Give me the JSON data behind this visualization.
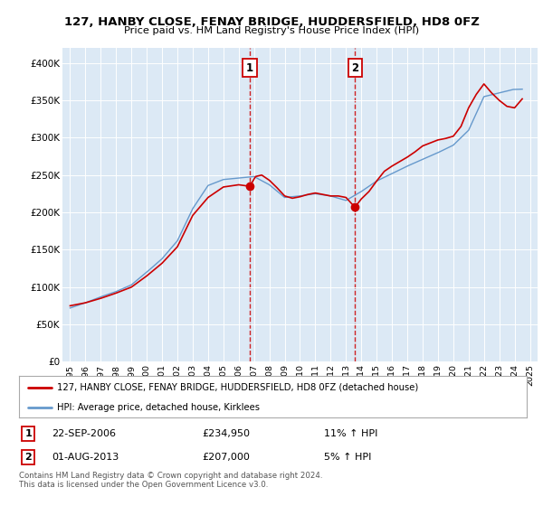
{
  "title1": "127, HANBY CLOSE, FENAY BRIDGE, HUDDERSFIELD, HD8 0FZ",
  "title2": "Price paid vs. HM Land Registry's House Price Index (HPI)",
  "legend_line1": "127, HANBY CLOSE, FENAY BRIDGE, HUDDERSFIELD, HD8 0FZ (detached house)",
  "legend_line2": "HPI: Average price, detached house, Kirklees",
  "annotation1_label": "1",
  "annotation1_date": "22-SEP-2006",
  "annotation1_price": "£234,950",
  "annotation1_hpi": "11% ↑ HPI",
  "annotation2_label": "2",
  "annotation2_date": "01-AUG-2013",
  "annotation2_price": "£207,000",
  "annotation2_hpi": "5% ↑ HPI",
  "footnote": "Contains HM Land Registry data © Crown copyright and database right 2024.\nThis data is licensed under the Open Government Licence v3.0.",
  "background_color": "#dce9f5",
  "line_color_red": "#cc0000",
  "line_color_blue": "#6699cc",
  "marker1_x": 2006.72,
  "marker1_y": 234950,
  "marker2_x": 2013.58,
  "marker2_y": 207000,
  "ylim_min": 0,
  "ylim_max": 420000,
  "xlim_min": 1994.5,
  "xlim_max": 2025.5,
  "yticks": [
    0,
    50000,
    100000,
    150000,
    200000,
    250000,
    300000,
    350000,
    400000
  ],
  "ytick_labels": [
    "£0",
    "£50K",
    "£100K",
    "£150K",
    "£200K",
    "£250K",
    "£300K",
    "£350K",
    "£400K"
  ],
  "xticks": [
    1995,
    1996,
    1997,
    1998,
    1999,
    2000,
    2001,
    2002,
    2003,
    2004,
    2005,
    2006,
    2007,
    2008,
    2009,
    2010,
    2011,
    2012,
    2013,
    2014,
    2015,
    2016,
    2017,
    2018,
    2019,
    2020,
    2021,
    2022,
    2023,
    2024,
    2025
  ]
}
